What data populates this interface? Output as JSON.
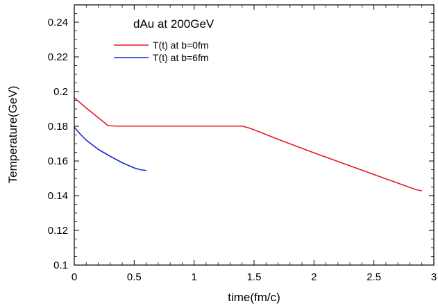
{
  "chart_data": {
    "type": "line",
    "annotation": "dAu at 200GeV",
    "xlabel": "time(fm/c)",
    "ylabel": "Temperature(GeV)",
    "xlim": [
      0,
      3
    ],
    "ylim": [
      0.1,
      0.25
    ],
    "xticks": [
      0,
      0.5,
      1,
      1.5,
      2,
      2.5,
      3
    ],
    "xtick_labels": [
      "0",
      "0.5",
      "1",
      "1.5",
      "2",
      "2.5",
      "3"
    ],
    "yticks": [
      0.1,
      0.12,
      0.14,
      0.16,
      0.18,
      0.2,
      0.22,
      0.24
    ],
    "ytick_labels": [
      "0.1",
      "0.12",
      "0.14",
      "0.16",
      "0.18",
      "0.2",
      "0.22",
      "0.24"
    ],
    "grid": false,
    "legend_position": "top-center",
    "series": [
      {
        "name": "T(t) at b=0fm",
        "color": "#e8191f",
        "x": [
          0,
          0.1,
          0.2,
          0.28,
          0.3,
          0.35,
          0.5,
          0.8,
          1.0,
          1.2,
          1.4,
          1.45,
          1.5,
          1.7,
          2.0,
          2.3,
          2.6,
          2.85,
          2.9
        ],
        "y": [
          0.1965,
          0.1905,
          0.185,
          0.1805,
          0.1803,
          0.1801,
          0.1801,
          0.1801,
          0.1801,
          0.1801,
          0.1801,
          0.1792,
          0.178,
          0.1725,
          0.1647,
          0.1572,
          0.1497,
          0.1435,
          0.1428
        ]
      },
      {
        "name": "T(t) at b=6fm",
        "color": "#1426d6",
        "x": [
          0,
          0.05,
          0.1,
          0.2,
          0.3,
          0.4,
          0.5,
          0.55,
          0.6
        ],
        "y": [
          0.1795,
          0.1755,
          0.172,
          0.1667,
          0.1627,
          0.159,
          0.156,
          0.155,
          0.1545
        ]
      }
    ]
  }
}
